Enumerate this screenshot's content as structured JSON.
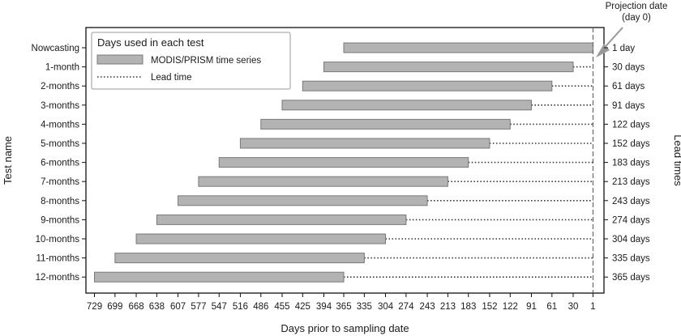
{
  "chart_data": {
    "type": "bar",
    "orientation": "horizontal",
    "xlabel": "Days prior to sampling date",
    "ylabel": "Test name",
    "right_axis_label": "Lead times",
    "x_axis_reversed": true,
    "xlim": [
      730,
      0
    ],
    "x_tick_labels": [
      "729",
      "699",
      "668",
      "638",
      "607",
      "577",
      "547",
      "516",
      "486",
      "455",
      "425",
      "394",
      "365",
      "335",
      "304",
      "274",
      "243",
      "213",
      "183",
      "152",
      "122",
      "91",
      "61",
      "30",
      "1"
    ],
    "grid": false,
    "legend": {
      "title": "Days used in each test",
      "position": "top-left",
      "entries": [
        {
          "label": "MODIS/PRISM time series",
          "style": "gray-bar"
        },
        {
          "label": "Lead time",
          "style": "dotted-line"
        }
      ]
    },
    "annotation": {
      "text_line1": "Projection date",
      "text_line2": "(day 0)",
      "x": 1,
      "style": "dashed vertical line with arrow"
    },
    "colors": {
      "bar_fill": "#b3b3b3",
      "bar_stroke": "#7a7a7a",
      "lead_line": "#333333",
      "projection_line": "#666666",
      "arrow": "#999999"
    },
    "tests": [
      {
        "name": "Nowcasting",
        "series_start_day": 365,
        "series_end_day": 1,
        "lead_time_days": 1,
        "lead_time_label": "1 day"
      },
      {
        "name": "1-month",
        "series_start_day": 394,
        "series_end_day": 30,
        "lead_time_days": 30,
        "lead_time_label": "30 days"
      },
      {
        "name": "2-months",
        "series_start_day": 425,
        "series_end_day": 61,
        "lead_time_days": 61,
        "lead_time_label": "61 days"
      },
      {
        "name": "3-months",
        "series_start_day": 455,
        "series_end_day": 91,
        "lead_time_days": 91,
        "lead_time_label": "91 days"
      },
      {
        "name": "4-months",
        "series_start_day": 486,
        "series_end_day": 122,
        "lead_time_days": 122,
        "lead_time_label": "122 days"
      },
      {
        "name": "5-months",
        "series_start_day": 516,
        "series_end_day": 152,
        "lead_time_days": 152,
        "lead_time_label": "152 days"
      },
      {
        "name": "6-months",
        "series_start_day": 547,
        "series_end_day": 183,
        "lead_time_days": 183,
        "lead_time_label": "183 days"
      },
      {
        "name": "7-months",
        "series_start_day": 577,
        "series_end_day": 213,
        "lead_time_days": 213,
        "lead_time_label": "213 days"
      },
      {
        "name": "8-months",
        "series_start_day": 607,
        "series_end_day": 243,
        "lead_time_days": 243,
        "lead_time_label": "243 days"
      },
      {
        "name": "9-months",
        "series_start_day": 638,
        "series_end_day": 274,
        "lead_time_days": 274,
        "lead_time_label": "274 days"
      },
      {
        "name": "10-months",
        "series_start_day": 668,
        "series_end_day": 304,
        "lead_time_days": 304,
        "lead_time_label": "304 days"
      },
      {
        "name": "11-months",
        "series_start_day": 699,
        "series_end_day": 335,
        "lead_time_days": 335,
        "lead_time_label": "335 days"
      },
      {
        "name": "12-months",
        "series_start_day": 729,
        "series_end_day": 365,
        "lead_time_days": 365,
        "lead_time_label": "365 days"
      }
    ]
  }
}
